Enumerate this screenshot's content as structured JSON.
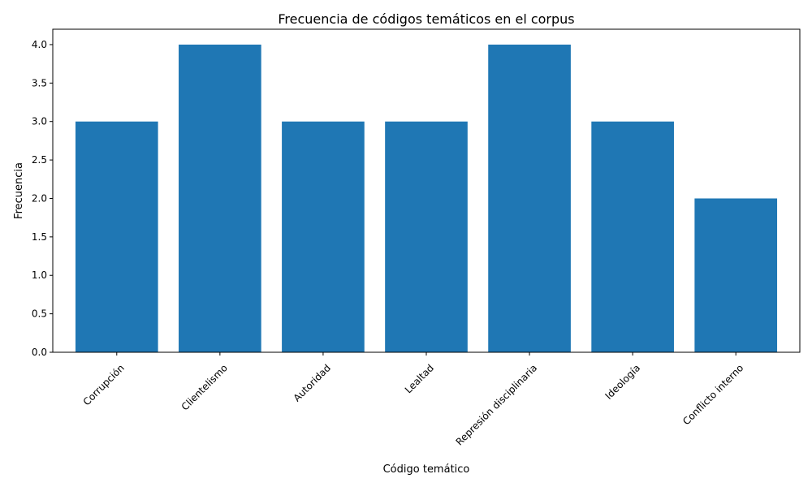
{
  "chart_data": {
    "type": "bar",
    "title": "Frecuencia de códigos temáticos en el corpus",
    "xlabel": "Código temático",
    "ylabel": "Frecuencia",
    "categories": [
      "Corrupción",
      "Clientelismo",
      "Autoridad",
      "Lealtad",
      "Represión disciplinaria",
      "Ideología",
      "Conflicto interno"
    ],
    "values": [
      3,
      4,
      3,
      3,
      4,
      3,
      2
    ],
    "ylim": [
      0,
      4.2
    ],
    "yticks": [
      "0.0",
      "0.5",
      "1.0",
      "1.5",
      "2.0",
      "2.5",
      "3.0",
      "3.5",
      "4.0"
    ],
    "bar_color": "#1f77b4",
    "grid": false,
    "legend": "none"
  }
}
